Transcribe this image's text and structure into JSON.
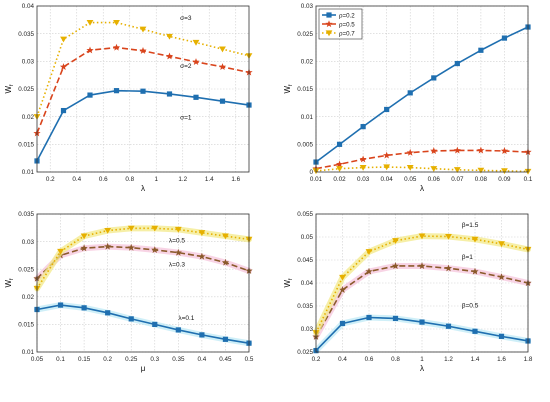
{
  "colors": {
    "blue": "#1f6fb0",
    "red": "#d9441c",
    "yellow": "#e6b000",
    "brown": "#8b5a2b",
    "grid": "#cfcfcf",
    "glow_yellow": "#f3ea8a",
    "glow_pink": "#f6c6dc",
    "glow_cyan": "#bfe9f6"
  },
  "chart_data": [
    {
      "type": "line",
      "ylabel": "W",
      "ylabel_sub": "f",
      "xlabel": "λ",
      "xlim": [
        0.1,
        1.7
      ],
      "ylim": [
        0.01,
        0.04
      ],
      "xticks": [
        0.2,
        0.4,
        0.6,
        0.8,
        1,
        1.2,
        1.4,
        1.6
      ],
      "yticks": [
        0.01,
        0.015,
        0.02,
        0.025,
        0.03,
        0.035,
        0.04
      ],
      "grid": true,
      "series": [
        {
          "name": "σ=1",
          "color": "blue",
          "dash": "",
          "marker": "square",
          "x": [
            0.1,
            0.3,
            0.5,
            0.7,
            0.9,
            1.1,
            1.3,
            1.5,
            1.7
          ],
          "y": [
            0.012,
            0.0211,
            0.0239,
            0.0247,
            0.0246,
            0.0241,
            0.0235,
            0.0228,
            0.0221
          ]
        },
        {
          "name": "σ=2",
          "color": "red",
          "dash": "6 3",
          "marker": "star",
          "x": [
            0.1,
            0.3,
            0.5,
            0.7,
            0.9,
            1.1,
            1.3,
            1.5,
            1.7
          ],
          "y": [
            0.017,
            0.029,
            0.032,
            0.0325,
            0.0319,
            0.0309,
            0.0299,
            0.029,
            0.028
          ]
        },
        {
          "name": "σ=3",
          "color": "yellow",
          "dash": "1.5 2.5",
          "marker": "tri-down",
          "x": [
            0.1,
            0.3,
            0.5,
            0.7,
            0.9,
            1.1,
            1.3,
            1.5,
            1.7
          ],
          "y": [
            0.02,
            0.034,
            0.037,
            0.037,
            0.0358,
            0.0345,
            0.0334,
            0.0322,
            0.031
          ]
        }
      ],
      "annotations": [
        {
          "text": "σ=3",
          "x": 1.18,
          "y": 0.0375
        },
        {
          "text": "σ=2",
          "x": 1.18,
          "y": 0.0288
        },
        {
          "text": "σ=1",
          "x": 1.18,
          "y": 0.0195
        }
      ]
    },
    {
      "type": "line",
      "ylabel": "W",
      "ylabel_sub": "f",
      "xlabel": "λ",
      "xlim": [
        0.01,
        0.1
      ],
      "ylim": [
        0,
        0.03
      ],
      "xticks": [
        0.01,
        0.02,
        0.03,
        0.04,
        0.05,
        0.06,
        0.07,
        0.08,
        0.09,
        0.1
      ],
      "yticks": [
        0,
        0.005,
        0.01,
        0.015,
        0.02,
        0.025,
        0.03
      ],
      "grid": true,
      "legend": "top-left",
      "series": [
        {
          "name": "ρ=0.2",
          "color": "blue",
          "dash": "",
          "marker": "square",
          "x": [
            0.01,
            0.02,
            0.03,
            0.04,
            0.05,
            0.06,
            0.07,
            0.08,
            0.09,
            0.1
          ],
          "y": [
            0.0018,
            0.005,
            0.0082,
            0.0113,
            0.0143,
            0.017,
            0.0196,
            0.022,
            0.0242,
            0.0262
          ]
        },
        {
          "name": "ρ=0.5",
          "color": "red",
          "dash": "6 3",
          "marker": "star",
          "x": [
            0.01,
            0.02,
            0.03,
            0.04,
            0.05,
            0.06,
            0.07,
            0.08,
            0.09,
            0.1
          ],
          "y": [
            0.0006,
            0.0014,
            0.0023,
            0.003,
            0.0035,
            0.0038,
            0.0039,
            0.0039,
            0.0038,
            0.0036
          ]
        },
        {
          "name": "ρ=0.7",
          "color": "yellow",
          "dash": "1.5 2.5",
          "marker": "tri-down",
          "x": [
            0.01,
            0.02,
            0.03,
            0.04,
            0.05,
            0.06,
            0.07,
            0.08,
            0.09,
            0.1
          ],
          "y": [
            0.0002,
            0.0006,
            0.0008,
            0.0009,
            0.0008,
            0.0006,
            0.0004,
            0.0003,
            0.0002,
            0.0001
          ]
        }
      ]
    },
    {
      "type": "line",
      "ylabel": "W",
      "ylabel_sub": "f",
      "xlabel": "μ",
      "xlim": [
        0.05,
        0.5
      ],
      "ylim": [
        0.01,
        0.035
      ],
      "xticks": [
        0.05,
        0.1,
        0.15,
        0.2,
        0.25,
        0.3,
        0.35,
        0.4,
        0.45,
        0.5
      ],
      "yticks": [
        0.01,
        0.015,
        0.02,
        0.025,
        0.03,
        0.035
      ],
      "grid": true,
      "series": [
        {
          "name": "λ=0.1",
          "color": "blue",
          "dash": "",
          "marker": "square",
          "glow": "glow_cyan",
          "x": [
            0.05,
            0.1,
            0.15,
            0.2,
            0.25,
            0.3,
            0.35,
            0.4,
            0.45,
            0.5
          ],
          "y": [
            0.0177,
            0.0185,
            0.018,
            0.0171,
            0.016,
            0.015,
            0.014,
            0.0131,
            0.0123,
            0.0116
          ]
        },
        {
          "name": "λ=0.3",
          "color": "brown",
          "dash": "6 3",
          "marker": "star",
          "glow": "glow_pink",
          "x": [
            0.05,
            0.1,
            0.15,
            0.2,
            0.25,
            0.3,
            0.35,
            0.4,
            0.45,
            0.5
          ],
          "y": [
            0.0233,
            0.0275,
            0.0288,
            0.0291,
            0.0289,
            0.0285,
            0.028,
            0.0273,
            0.0262,
            0.0247
          ]
        },
        {
          "name": "λ=0.5",
          "color": "yellow",
          "dash": "1.5 2.5",
          "marker": "tri-down",
          "glow": "glow_yellow",
          "x": [
            0.05,
            0.1,
            0.15,
            0.2,
            0.25,
            0.3,
            0.35,
            0.4,
            0.45,
            0.5
          ],
          "y": [
            0.0215,
            0.0282,
            0.031,
            0.032,
            0.0324,
            0.0324,
            0.0322,
            0.0316,
            0.031,
            0.0304
          ]
        }
      ],
      "annotations": [
        {
          "text": "λ=0.5",
          "x": 0.33,
          "y": 0.0298
        },
        {
          "text": "λ=0.3",
          "x": 0.33,
          "y": 0.0255
        },
        {
          "text": "λ=0.1",
          "x": 0.35,
          "y": 0.0158
        }
      ]
    },
    {
      "type": "line",
      "ylabel": "W",
      "ylabel_sub": "f",
      "xlabel": "λ",
      "xlim": [
        0.2,
        1.8
      ],
      "ylim": [
        0.025,
        0.055
      ],
      "xticks": [
        0.2,
        0.4,
        0.6,
        0.8,
        1,
        1.2,
        1.4,
        1.6,
        1.8
      ],
      "yticks": [
        0.025,
        0.03,
        0.035,
        0.04,
        0.045,
        0.05,
        0.055
      ],
      "grid": true,
      "series": [
        {
          "name": "β=0.5",
          "color": "blue",
          "dash": "",
          "marker": "square",
          "glow": "glow_cyan",
          "x": [
            0.2,
            0.4,
            0.6,
            0.8,
            1.0,
            1.2,
            1.4,
            1.6,
            1.8
          ],
          "y": [
            0.0253,
            0.0312,
            0.0325,
            0.0323,
            0.0315,
            0.0306,
            0.0295,
            0.0284,
            0.0274
          ]
        },
        {
          "name": "β=1",
          "color": "brown",
          "dash": "6 3",
          "marker": "star",
          "glow": "glow_pink",
          "x": [
            0.2,
            0.4,
            0.6,
            0.8,
            1.0,
            1.2,
            1.4,
            1.6,
            1.8
          ],
          "y": [
            0.0283,
            0.0385,
            0.0425,
            0.0437,
            0.0437,
            0.0432,
            0.0425,
            0.0413,
            0.04
          ]
        },
        {
          "name": "β=1.5",
          "color": "yellow",
          "dash": "1.5 2.5",
          "marker": "tri-down",
          "glow": "glow_yellow",
          "x": [
            0.2,
            0.4,
            0.6,
            0.8,
            1.0,
            1.2,
            1.4,
            1.6,
            1.8
          ],
          "y": [
            0.0292,
            0.0412,
            0.0468,
            0.0492,
            0.0502,
            0.0501,
            0.0495,
            0.0485,
            0.0473
          ]
        }
      ],
      "annotations": [
        {
          "text": "β=1.5",
          "x": 1.3,
          "y": 0.0522
        },
        {
          "text": "β=1",
          "x": 1.3,
          "y": 0.0452
        },
        {
          "text": "β=0.5",
          "x": 1.3,
          "y": 0.0347
        }
      ]
    }
  ]
}
